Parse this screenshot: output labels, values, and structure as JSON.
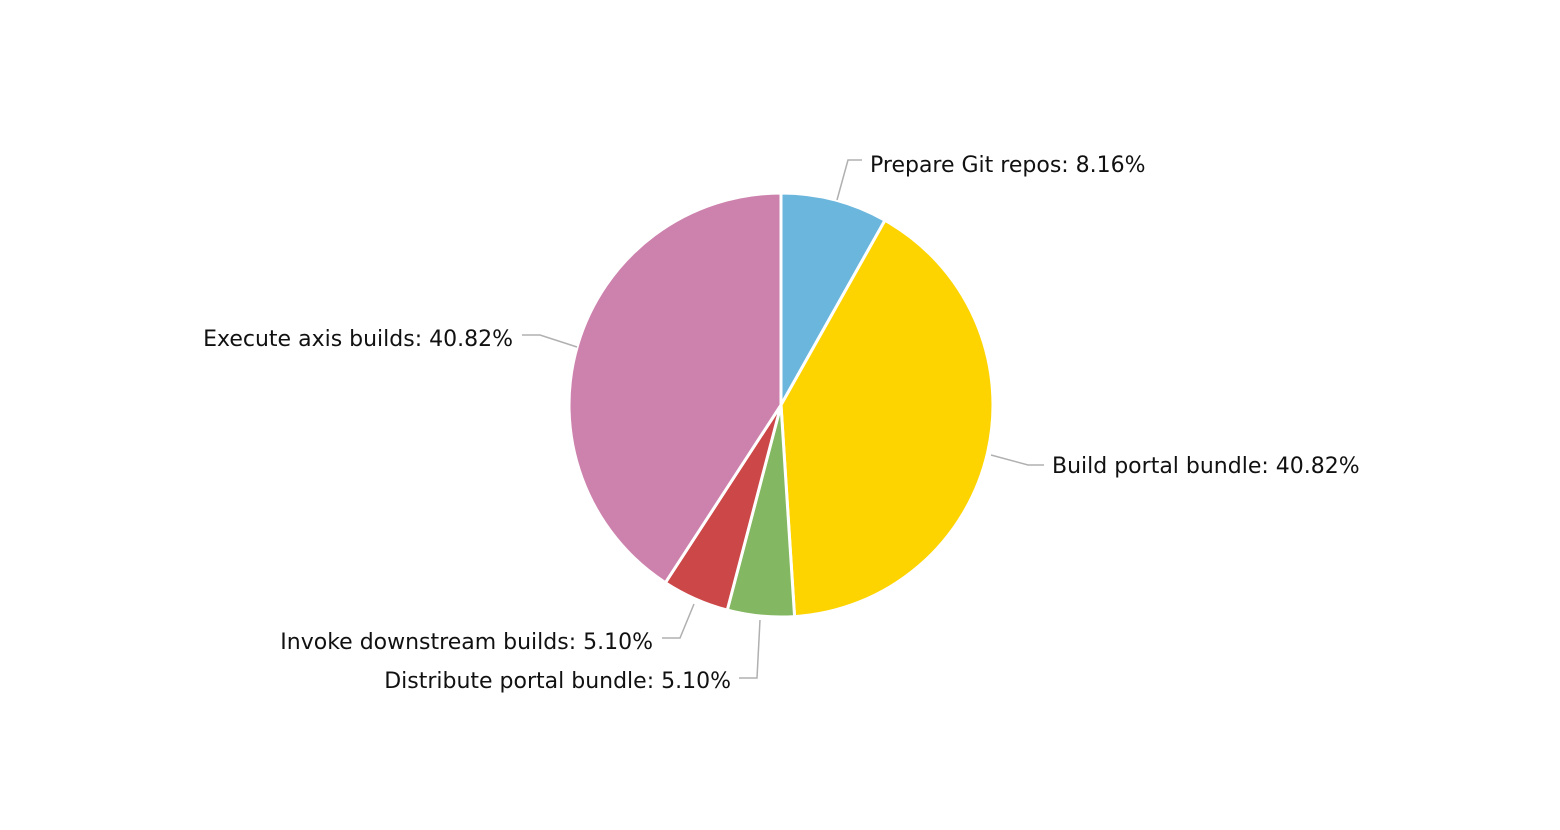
{
  "chart_data": {
    "type": "pie",
    "title": "",
    "slices": [
      {
        "label": "Prepare Git repos",
        "value": 8.16,
        "display": "Prepare Git repos: 8.16%",
        "color": "#6ab6dc"
      },
      {
        "label": "Build portal bundle",
        "value": 40.82,
        "display": "Build portal bundle: 40.82%",
        "color": "#fdd400"
      },
      {
        "label": "Distribute portal bundle",
        "value": 5.1,
        "display": "Distribute portal bundle: 5.10%",
        "color": "#84b761"
      },
      {
        "label": "Invoke downstream builds",
        "value": 5.1,
        "display": "Invoke downstream builds: 5.10%",
        "color": "#cc4748"
      },
      {
        "label": "Execute axis builds",
        "value": 40.82,
        "display": "Execute axis builds: 40.82%",
        "color": "#cd82ad"
      }
    ],
    "start_angle": "12 o'clock",
    "direction": "clockwise",
    "legend": "none",
    "labels": "outside with leader lines"
  }
}
